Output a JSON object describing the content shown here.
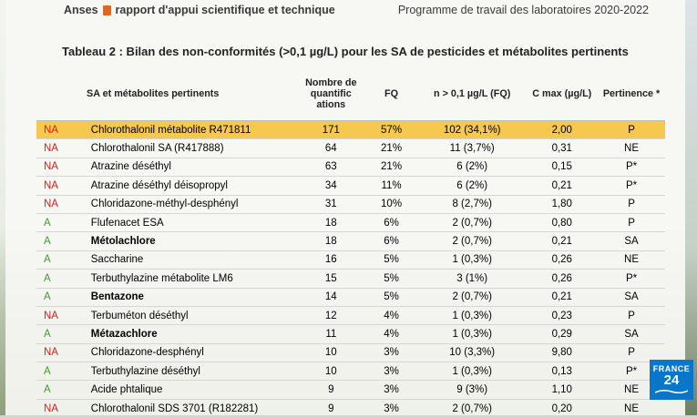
{
  "header": {
    "brand_left": "Anses",
    "brand_right": "rapport d'appui scientifique et technique",
    "program": "Programme de travail des laboratoires 2020-2022"
  },
  "table_title": "Tableau 2 : Bilan des non-conformités (>0,1 µg/L) pour les SA de pesticides et métabolites pertinents",
  "columns": {
    "name": "SA et métabolites pertinents",
    "quantifications": "Nombre de quantific ations",
    "fq": "FQ",
    "n_over": "n > 0,1 µg/L (FQ)",
    "cmax": "C max (µg/L)",
    "pertinence": "Pertinence *"
  },
  "rows": [
    {
      "status": "NA",
      "name": "Chlorothalonil métabolite R471811",
      "n": "171",
      "fq": "57%",
      "over": "102 (34,1%)",
      "cmax": "2,00",
      "pert": "P"
    },
    {
      "status": "NA",
      "name": "Chlorothalonil SA (R417888)",
      "n": "64",
      "fq": "21%",
      "over": "11 (3,7%)",
      "cmax": "0,31",
      "pert": "NE"
    },
    {
      "status": "NA",
      "name": "Atrazine déséthyl",
      "n": "63",
      "fq": "21%",
      "over": "6 (2%)",
      "cmax": "0,15",
      "pert": "P*"
    },
    {
      "status": "NA",
      "name": "Atrazine déséthyl déisopropyl",
      "n": "34",
      "fq": "11%",
      "over": "6 (2%)",
      "cmax": "0,21",
      "pert": "P*"
    },
    {
      "status": "NA",
      "name": "Chloridazone-méthyl-desphényl",
      "n": "31",
      "fq": "10%",
      "over": "8 (2,7%)",
      "cmax": "1,80",
      "pert": "P"
    },
    {
      "status": "A",
      "name": "Flufenacet ESA",
      "n": "18",
      "fq": "6%",
      "over": "2 (0,7%)",
      "cmax": "0,80",
      "pert": "P"
    },
    {
      "status": "A",
      "name": "Métolachlore",
      "n": "18",
      "fq": "6%",
      "over": "2 (0,7%)",
      "cmax": "0,21",
      "pert": "SA"
    },
    {
      "status": "A",
      "name": "Saccharine",
      "n": "16",
      "fq": "5%",
      "over": "1 (0,3%)",
      "cmax": "0,26",
      "pert": "NE"
    },
    {
      "status": "A",
      "name": "Terbuthylazine métabolite LM6",
      "n": "15",
      "fq": "5%",
      "over": "3 (1%)",
      "cmax": "0,26",
      "pert": "P*"
    },
    {
      "status": "A",
      "name": "Bentazone",
      "n": "14",
      "fq": "5%",
      "over": "2 (0,7%)",
      "cmax": "0,21",
      "pert": "SA"
    },
    {
      "status": "NA",
      "name": "Terbuméton déséthyl",
      "n": "12",
      "fq": "4%",
      "over": "1 (0,3%)",
      "cmax": "0,23",
      "pert": "P"
    },
    {
      "status": "A",
      "name": "Métazachlore",
      "n": "11",
      "fq": "4%",
      "over": "1 (0,3%)",
      "cmax": "0,29",
      "pert": "SA"
    },
    {
      "status": "NA",
      "name": "Chloridazone-desphényl",
      "n": "10",
      "fq": "3%",
      "over": "10 (3,3%)",
      "cmax": "9,80",
      "pert": "P"
    },
    {
      "status": "A",
      "name": "Terbuthylazine déséthyl",
      "n": "10",
      "fq": "3%",
      "over": "1 (0,3%)",
      "cmax": "0,13",
      "pert": "P*"
    },
    {
      "status": "A",
      "name": "Acide phtalique",
      "n": "9",
      "fq": "3%",
      "over": "9 (3%)",
      "cmax": "1,10",
      "pert": "NE"
    },
    {
      "status": "NA",
      "name": "Chlorothalonil SDS 3701 (R182281)",
      "n": "9",
      "fq": "3%",
      "over": "2 (0,7%)",
      "cmax": "0,20",
      "pert": "NE"
    }
  ],
  "highlight_row": 0,
  "bold_rows": [
    6,
    9,
    11
  ],
  "colors": {
    "na": "#d11f1f",
    "a": "#3f9a2f",
    "highlight": "#f6c94e",
    "logo": "#0a76c9"
  },
  "logo": {
    "line1": "FRANCE",
    "line2": "24"
  }
}
